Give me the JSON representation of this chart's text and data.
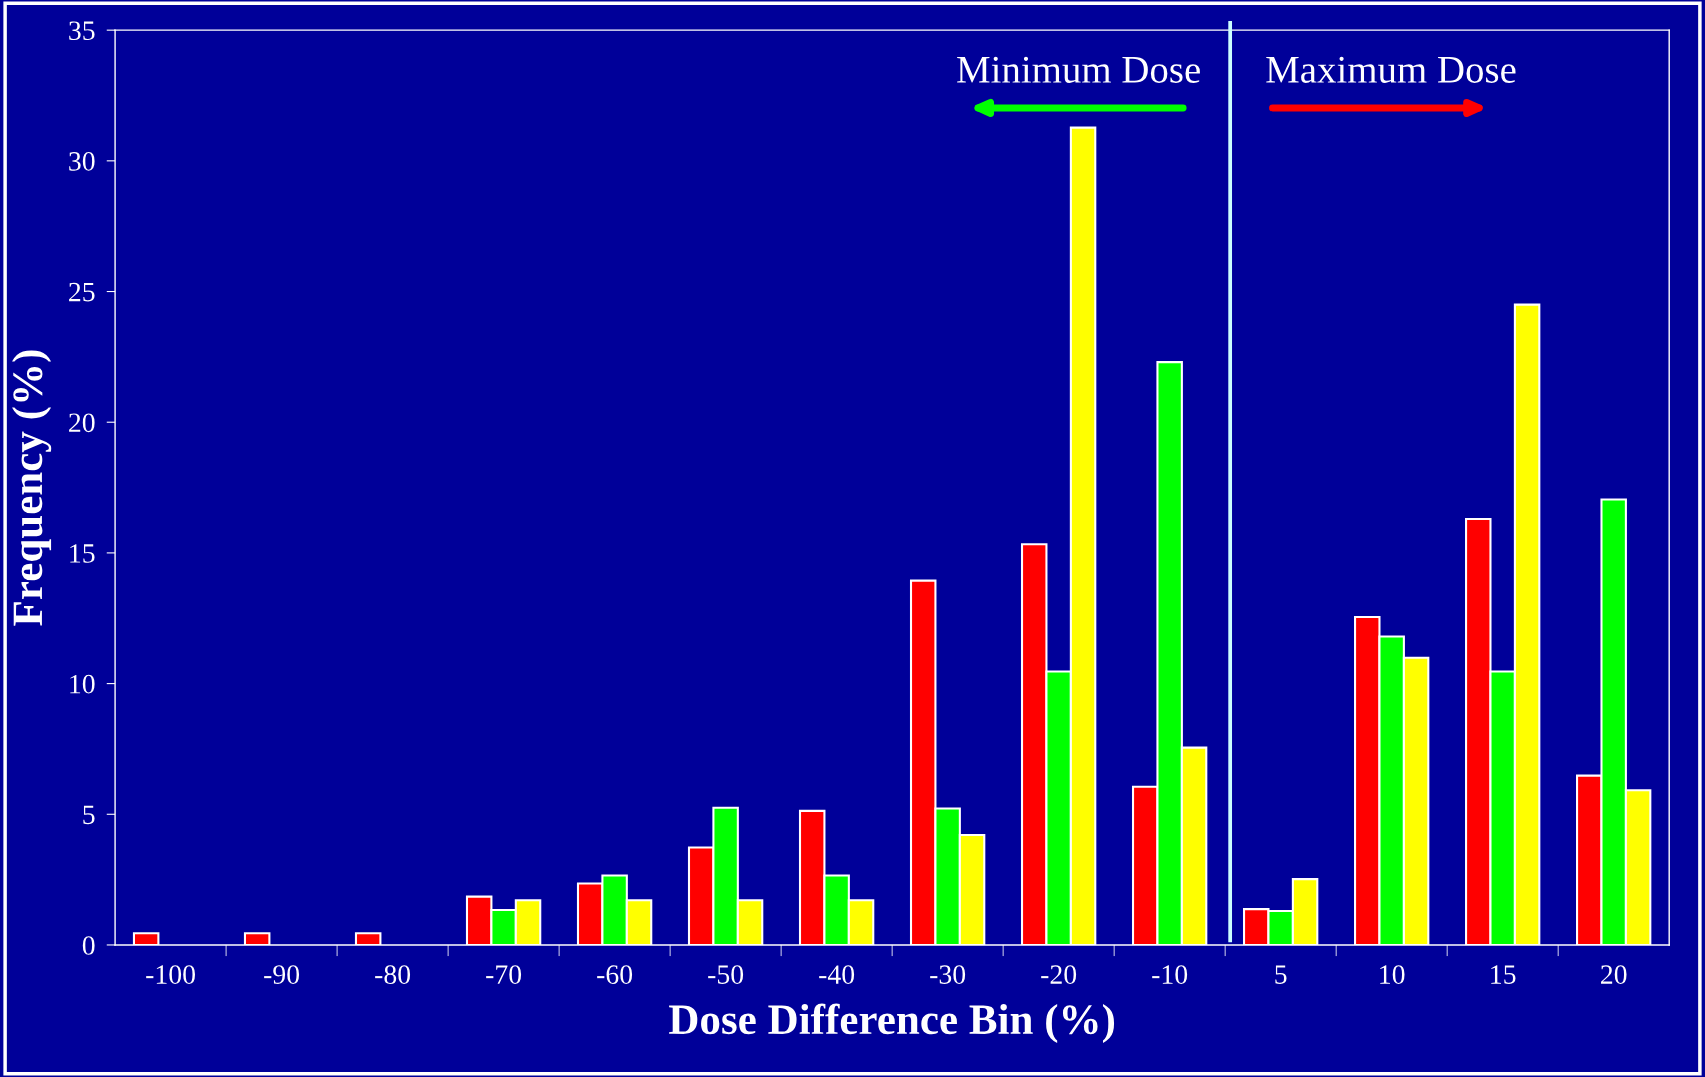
{
  "chart_data": {
    "type": "bar",
    "xlabel": "Dose Difference Bin (%)",
    "ylabel": "Frequency (%)",
    "categories": [
      "-100",
      "-90",
      "-80",
      "-70",
      "-60",
      "-50",
      "-40",
      "-30",
      "-20",
      "-10",
      "5",
      "10",
      "15",
      "20"
    ],
    "series": [
      {
        "color": "#ff0000",
        "values": [
          0.45,
          0.45,
          0.45,
          1.85,
          2.35,
          3.73,
          5.13,
          13.94,
          15.33,
          6.05,
          1.37,
          12.55,
          16.3,
          6.48
        ]
      },
      {
        "color": "#00ff00",
        "values": [
          0,
          0,
          0,
          1.34,
          2.66,
          5.25,
          2.66,
          5.22,
          10.46,
          22.3,
          1.3,
          11.8,
          10.46,
          17.04
        ]
      },
      {
        "color": "#ffff00",
        "values": [
          0,
          0,
          0,
          1.71,
          1.71,
          1.71,
          1.71,
          4.21,
          31.27,
          7.55,
          2.52,
          10.99,
          24.5,
          5.92
        ]
      }
    ],
    "ylim": [
      0,
      35
    ],
    "yticks": [
      0,
      5,
      10,
      15,
      20,
      25,
      30,
      35
    ],
    "grid": false,
    "annotations": [
      "Minimum Dose",
      "Maximum Dose"
    ]
  }
}
